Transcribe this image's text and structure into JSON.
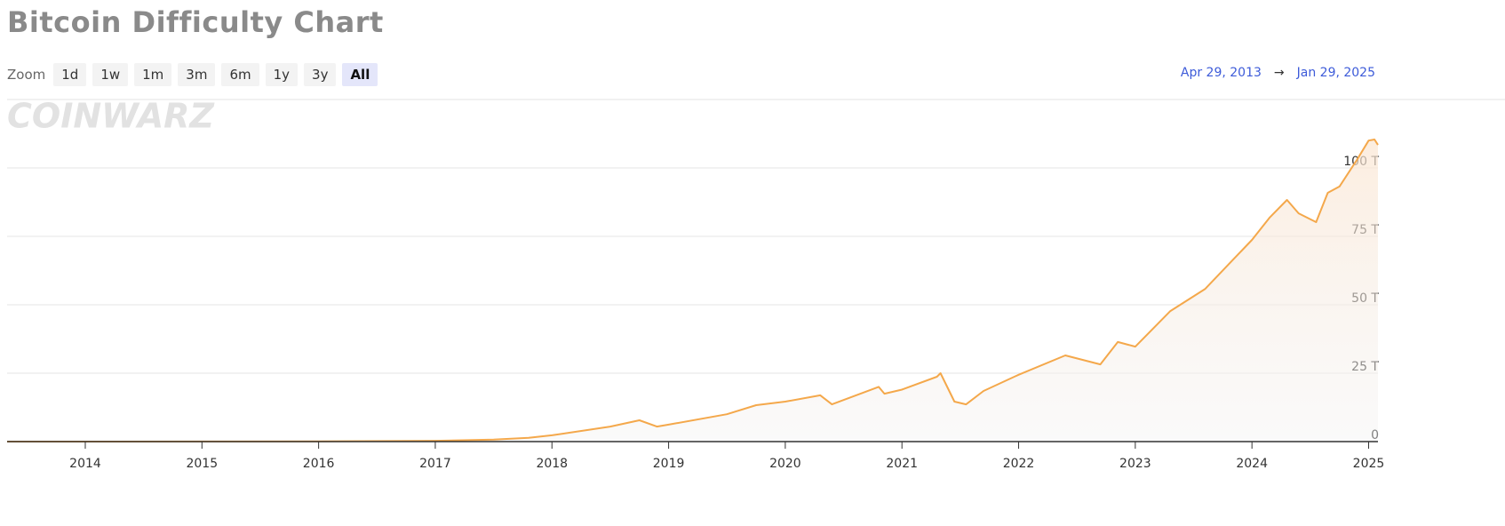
{
  "chart_data": {
    "type": "line",
    "title": "Bitcoin Difficulty Chart",
    "zoom_label": "Zoom",
    "zoom_options": [
      "1d",
      "1w",
      "1m",
      "3m",
      "6m",
      "1y",
      "3y",
      "All"
    ],
    "zoom_selected": "All",
    "range_start": "Apr 29, 2013",
    "range_separator": "→",
    "range_end": "Jan 29, 2025",
    "watermark": "COINWARZ",
    "x": [
      2013.33,
      2014.0,
      2015.0,
      2016.0,
      2017.0,
      2017.5,
      2017.8,
      2018.0,
      2018.5,
      2018.75,
      2018.9,
      2019.0,
      2019.5,
      2019.75,
      2020.0,
      2020.3,
      2020.4,
      2020.8,
      2020.85,
      2021.0,
      2021.3,
      2021.33,
      2021.45,
      2021.55,
      2021.7,
      2022.0,
      2022.4,
      2022.7,
      2022.85,
      2023.0,
      2023.3,
      2023.6,
      2023.85,
      2024.0,
      2024.15,
      2024.3,
      2024.4,
      2024.55,
      2024.65,
      2024.75,
      2024.9,
      2025.0,
      2025.05,
      2025.08
    ],
    "series": [
      {
        "name": "Difficulty",
        "color": "#f4a84b",
        "values": [
          0.01,
          0.01,
          0.04,
          0.1,
          0.3,
          0.7,
          1.4,
          2.3,
          5.5,
          7.8,
          5.5,
          6.2,
          10,
          13.3,
          14.6,
          16.9,
          13.6,
          20,
          17.5,
          19,
          23.7,
          25,
          14.6,
          13.6,
          18.5,
          24.4,
          31.5,
          28.2,
          36.4,
          34.7,
          47.7,
          55.8,
          67,
          73.7,
          81.8,
          88.3,
          83.4,
          80.2,
          90.9,
          93.2,
          103,
          110,
          110.4,
          108.4
        ]
      }
    ],
    "xlim": [
      2013.33,
      2025.08
    ],
    "xticks": [
      2014,
      2015,
      2016,
      2017,
      2018,
      2019,
      2020,
      2021,
      2022,
      2023,
      2024,
      2025
    ],
    "ylim": [
      0,
      125
    ],
    "yticks": [
      0,
      {
        "value": 25,
        "label": "25 T"
      },
      {
        "value": 50,
        "label": "50 T"
      },
      {
        "value": 75,
        "label": "75 T"
      },
      {
        "value": 100,
        "label": "100 T"
      }
    ],
    "grid": true
  }
}
